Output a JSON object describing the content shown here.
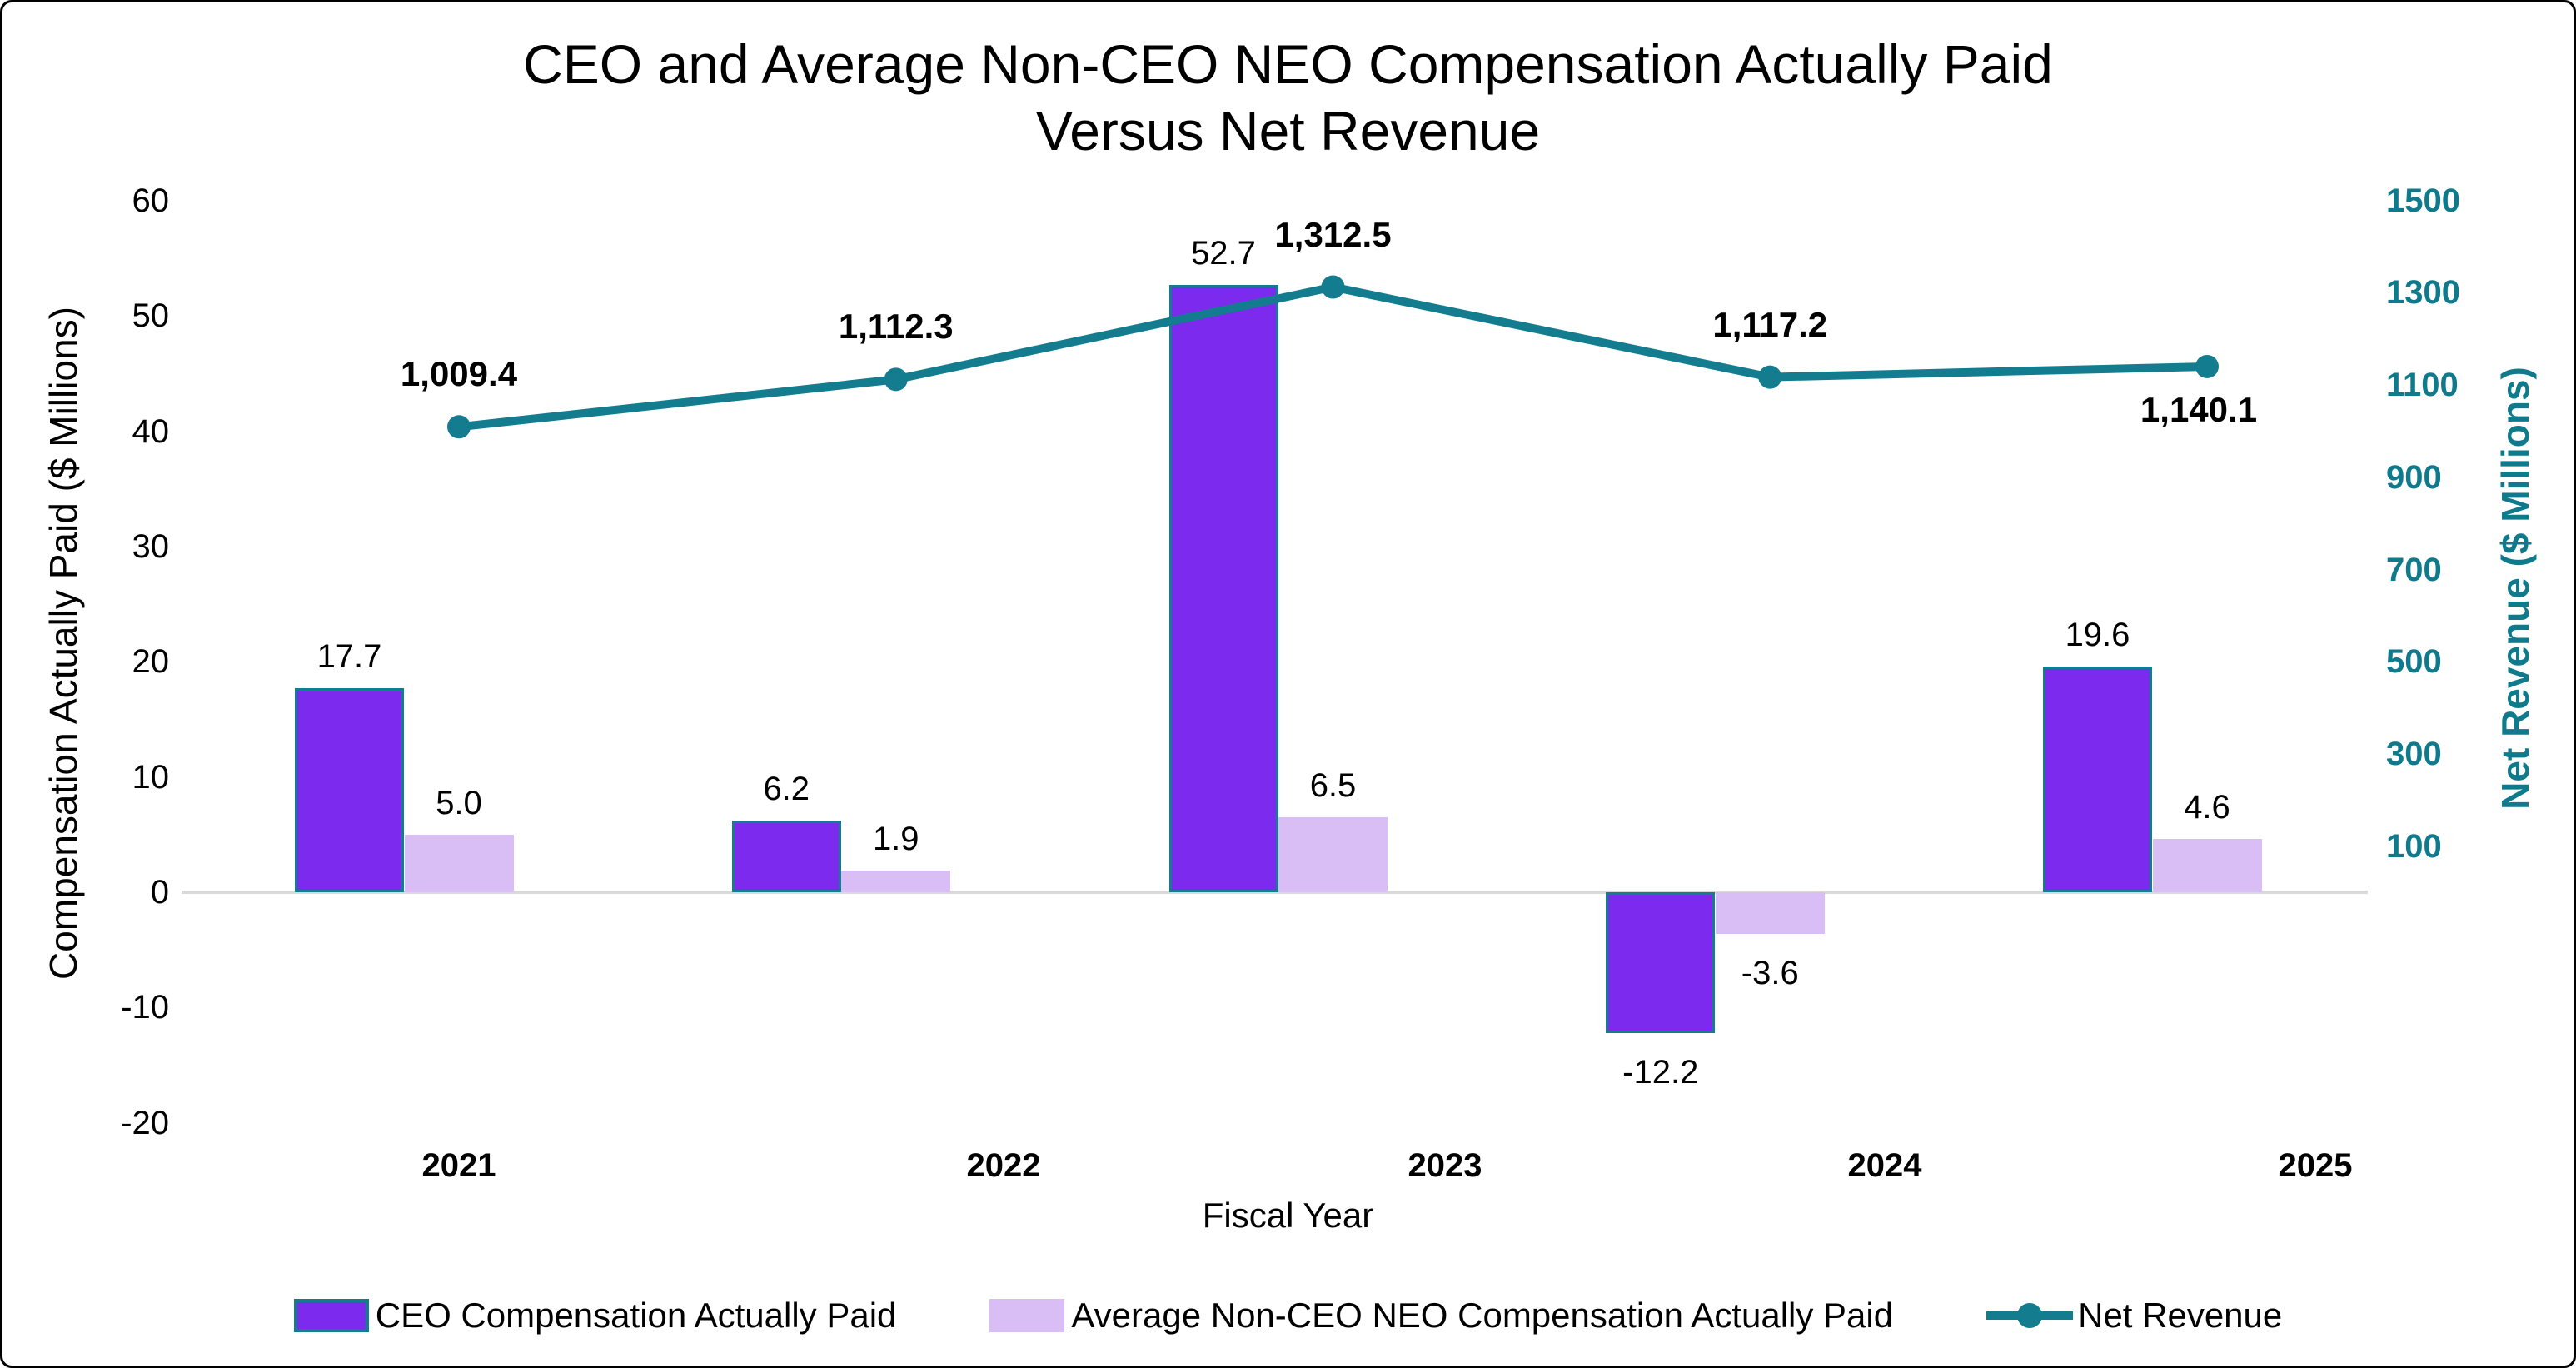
{
  "title": {
    "line1": "CEO and Average Non-CEO NEO Compensation Actually Paid",
    "line2": "Versus Net Revenue"
  },
  "chart_data": {
    "type": "combo",
    "categories": [
      "2021",
      "2022",
      "2023",
      "2024",
      "2025"
    ],
    "series": [
      {
        "name": "CEO Compensation Actually Paid",
        "type": "bar",
        "axis": "left",
        "color": "#7D2AEF",
        "border_color": "#137C8E",
        "values": [
          17.7,
          6.2,
          52.7,
          -12.2,
          19.6
        ],
        "labels": [
          "17.7",
          "6.2",
          "52.7",
          "-12.2",
          "19.6"
        ]
      },
      {
        "name": "Average Non-CEO NEO Compensation Actually Paid",
        "type": "bar",
        "axis": "left",
        "color": "#D9BDF5",
        "values": [
          5.0,
          1.9,
          6.5,
          -3.6,
          4.6
        ],
        "labels": [
          "5.0",
          "1.9",
          "6.5",
          "-3.6",
          "4.6"
        ]
      },
      {
        "name": "Net Revenue",
        "type": "line",
        "axis": "right",
        "color": "#137C8E",
        "values": [
          1009.4,
          1112.3,
          1312.5,
          1117.2,
          1140.1
        ],
        "labels": [
          "1,009.4",
          "1,112.3",
          "1,312.5",
          "1,117.2",
          "1,140.1"
        ]
      }
    ],
    "left_axis": {
      "title": "Compensation Actually Paid ($ Millions)",
      "min": -20,
      "max": 60,
      "ticks": [
        60,
        50,
        40,
        30,
        20,
        10,
        0,
        -10,
        -20
      ]
    },
    "right_axis": {
      "title": "Net Revenue ($ Millions)",
      "min": -500,
      "max": 1500,
      "ticks": [
        1500,
        1300,
        1100,
        900,
        700,
        500,
        300,
        100
      ],
      "color": "#0E7A8C"
    },
    "x_axis": {
      "title": "Fiscal Year"
    },
    "gridline": {
      "value": 0,
      "color": "#D9D9D9"
    },
    "legend_position": "bottom",
    "grid": "zero-line-only"
  }
}
